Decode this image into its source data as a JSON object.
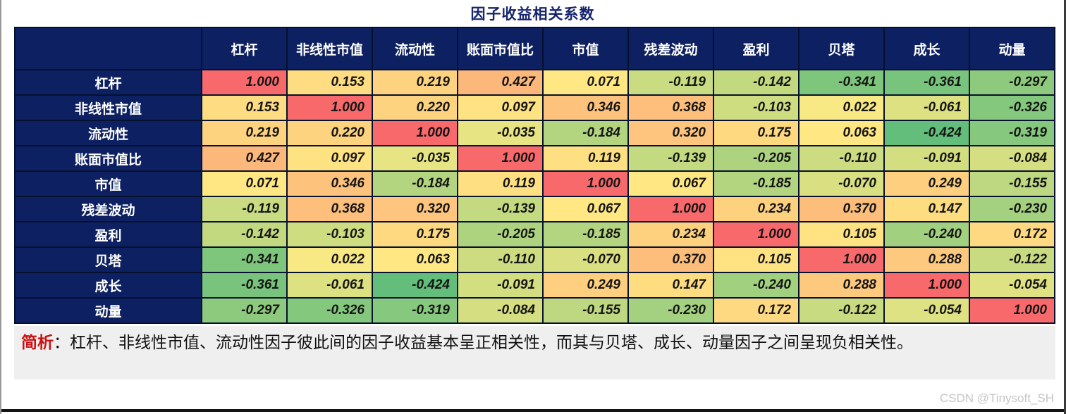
{
  "chart_data": {
    "type": "heatmap",
    "title": "因子收益相关系数",
    "categories": [
      "杠杆",
      "非线性市值",
      "流动性",
      "账面市值比",
      "市值",
      "残差波动",
      "盈利",
      "贝塔",
      "成长",
      "动量"
    ],
    "matrix": [
      [
        1.0,
        0.153,
        0.219,
        0.427,
        0.071,
        -0.119,
        -0.142,
        -0.341,
        -0.361,
        -0.297
      ],
      [
        0.153,
        1.0,
        0.22,
        0.097,
        0.346,
        0.368,
        -0.103,
        0.022,
        -0.061,
        -0.326
      ],
      [
        0.219,
        0.22,
        1.0,
        -0.035,
        -0.184,
        0.32,
        0.175,
        0.063,
        -0.424,
        -0.319
      ],
      [
        0.427,
        0.097,
        -0.035,
        1.0,
        0.119,
        -0.139,
        -0.205,
        -0.11,
        -0.091,
        -0.084
      ],
      [
        0.071,
        0.346,
        -0.184,
        0.119,
        1.0,
        0.067,
        -0.185,
        -0.07,
        0.249,
        -0.155
      ],
      [
        -0.119,
        0.368,
        0.32,
        -0.139,
        0.067,
        1.0,
        0.234,
        0.37,
        0.147,
        -0.23
      ],
      [
        -0.142,
        -0.103,
        0.175,
        -0.205,
        -0.185,
        0.234,
        1.0,
        0.105,
        -0.24,
        0.172
      ],
      [
        -0.341,
        0.022,
        0.063,
        -0.11,
        -0.07,
        0.37,
        0.105,
        1.0,
        0.288,
        -0.122
      ],
      [
        -0.361,
        -0.061,
        -0.424,
        -0.091,
        0.249,
        0.147,
        -0.24,
        0.288,
        1.0,
        -0.054
      ],
      [
        -0.297,
        -0.326,
        -0.319,
        -0.084,
        -0.155,
        -0.23,
        0.172,
        -0.122,
        -0.054,
        1.0
      ]
    ],
    "value_decimals": 3,
    "colorscale": {
      "min": -0.424,
      "mid": 0.04,
      "max": 1.0,
      "min_color": "#63BE7B",
      "mid_color": "#FFEB84",
      "max_color": "#F8696B"
    },
    "header_bg": "#0c2062",
    "grid_color": "#06112e"
  },
  "note": {
    "label": "简析",
    "colon": "：",
    "text": "杠杆、非线性市值、流动性因子彼此间的因子收益基本呈正相关性，而其与贝塔、成长、动量因子之间呈现负相关性。"
  },
  "watermark": "CSDN @Tinysoft_SH"
}
